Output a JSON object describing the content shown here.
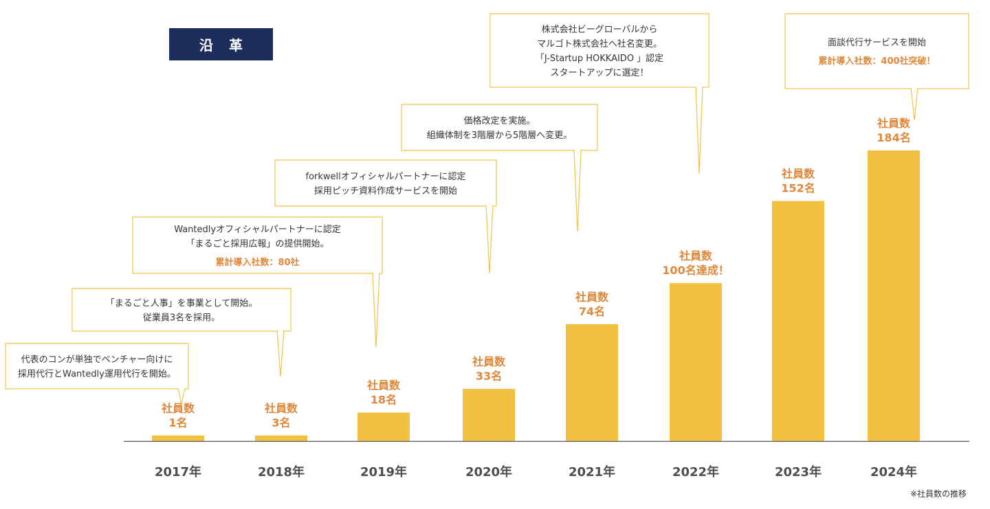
{
  "header": {
    "title": "沿 革"
  },
  "footnote": "※社員数の推移",
  "colors": {
    "bar": "#f3c142",
    "label": "#e0873a",
    "bubble_border": "#f3c142",
    "badge_bg": "#1d2d5c",
    "axis": "#555555",
    "year": "#4d4d4d"
  },
  "chart_data": {
    "type": "bar",
    "categories": [
      "2017年",
      "2018年",
      "2019年",
      "2020年",
      "2021年",
      "2022年",
      "2023年",
      "2024年"
    ],
    "values": [
      1,
      3,
      18,
      33,
      74,
      100,
      152,
      184
    ],
    "data_labels": [
      [
        "社員数",
        "1名"
      ],
      [
        "社員数",
        "3名"
      ],
      [
        "社員数",
        "18名"
      ],
      [
        "社員数",
        "33名"
      ],
      [
        "社員数",
        "74名"
      ],
      [
        "社員数",
        "100名達成！"
      ],
      [
        "社員数",
        "152名"
      ],
      [
        "社員数",
        "184名"
      ]
    ],
    "annotations": [
      {
        "year": "2017年",
        "lines": [
          "代表のコンが単独でベンチャー向けに",
          "採用代行とWantedly運用代行を開始。"
        ],
        "highlight": ""
      },
      {
        "year": "2018年",
        "lines": [
          "「まるごと人事」を事業として開始。",
          "従業員3名を採用。"
        ],
        "highlight": ""
      },
      {
        "year": "2019年",
        "lines": [
          "Wantedlyオフィシャルパートナーに認定",
          "「まるごと採用広報」の提供開始。"
        ],
        "highlight": "累計導入社数：80社"
      },
      {
        "year": "2020年",
        "lines": [
          "forkwellオフィシャルパートナーに認定",
          "採用ピッチ資料作成サービスを開始"
        ],
        "highlight": ""
      },
      {
        "year": "2021年",
        "lines": [
          "価格改定を実施。",
          "組織体制を3階層から5階層へ変更。"
        ],
        "highlight": ""
      },
      {
        "year": "2022年",
        "lines": [
          "株式会社ビーグローバルから",
          "マルゴト株式会社へ社名変更。",
          "「J-Startup HOKKAIDO 」認定",
          "スタートアップに選定！"
        ],
        "highlight": ""
      },
      {
        "year": "2024年",
        "lines": [
          "面談代行サービスを開始"
        ],
        "highlight": "累計導入社数：400社突破！"
      }
    ]
  }
}
